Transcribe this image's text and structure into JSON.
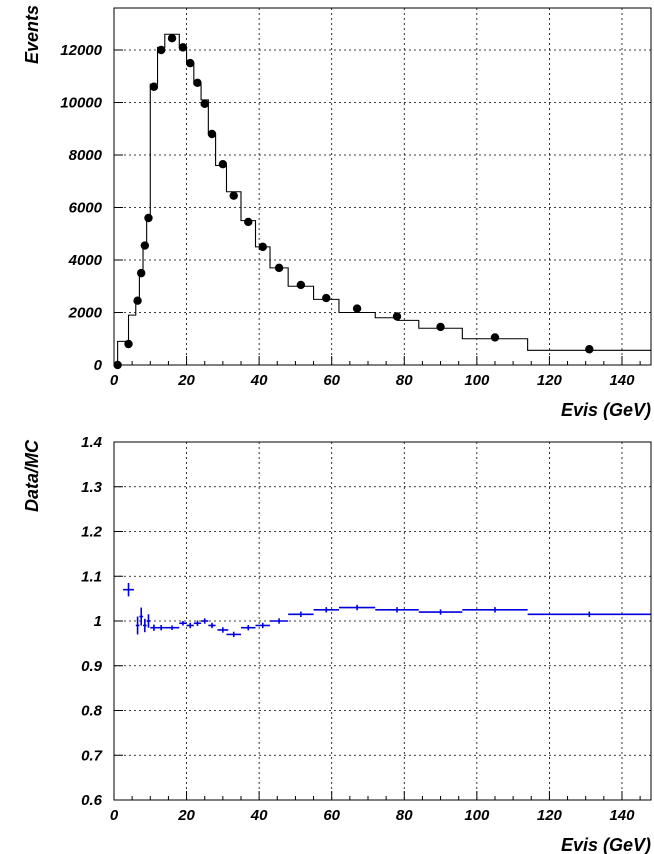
{
  "chart_data": [
    {
      "type": "line",
      "xlabel": "Evis (GeV)",
      "ylabel": "Events",
      "xlim": [
        0,
        148
      ],
      "ylim": [
        0,
        13600
      ],
      "x_ticks": [
        "0",
        "20",
        "40",
        "60",
        "80",
        "100",
        "120",
        "140"
      ],
      "y_ticks": [
        "0",
        "2000",
        "4000",
        "6000",
        "8000",
        "10000",
        "12000"
      ],
      "grid": true,
      "series": [
        {
          "style": "step-histogram",
          "color": "#000000",
          "bins": [
            [
              1,
              4,
              900
            ],
            [
              4,
              6,
              1900
            ],
            [
              6,
              7,
              2500
            ],
            [
              7,
              8,
              3600
            ],
            [
              8,
              9,
              4600
            ],
            [
              9,
              10,
              5600
            ],
            [
              10,
              12,
              10700
            ],
            [
              12,
              14,
              12100
            ],
            [
              14,
              18,
              12600
            ],
            [
              18,
              20,
              12100
            ],
            [
              20,
              22,
              11500
            ],
            [
              22,
              24,
              10700
            ],
            [
              24,
              26,
              10100
            ],
            [
              26,
              28,
              8800
            ],
            [
              28,
              31,
              7600
            ],
            [
              31,
              35,
              6600
            ],
            [
              35,
              39,
              5500
            ],
            [
              39,
              43,
              4500
            ],
            [
              43,
              48,
              3700
            ],
            [
              48,
              55,
              3000
            ],
            [
              55,
              62,
              2500
            ],
            [
              62,
              72,
              2000
            ],
            [
              72,
              78,
              1800
            ],
            [
              78,
              84,
              1700
            ],
            [
              84,
              96,
              1400
            ],
            [
              96,
              114,
              1000
            ],
            [
              114,
              148,
              560
            ]
          ]
        },
        {
          "style": "points",
          "color": "#000000",
          "x": [
            1,
            4,
            6.5,
            7.5,
            8.5,
            9.5,
            11,
            13,
            16,
            19,
            21,
            23,
            25,
            27,
            30,
            33,
            37,
            41,
            45.5,
            51.5,
            58.5,
            67,
            78,
            90,
            105,
            131
          ],
          "y": [
            0,
            800,
            2450,
            3500,
            4550,
            5600,
            10600,
            12000,
            12450,
            12100,
            11500,
            10750,
            9950,
            8800,
            7650,
            6450,
            5450,
            4500,
            3700,
            3050,
            2550,
            2150,
            1850,
            1450,
            1050,
            600
          ]
        }
      ]
    },
    {
      "type": "scatter",
      "xlabel": "Evis (GeV)",
      "ylabel": "Data/MC",
      "xlim": [
        0,
        148
      ],
      "ylim": [
        0.6,
        1.4
      ],
      "x_ticks": [
        "0",
        "20",
        "40",
        "60",
        "80",
        "100",
        "120",
        "140"
      ],
      "y_ticks": [
        "0.6",
        "0.7",
        "0.8",
        "0.9",
        "1",
        "1.1",
        "1.2",
        "1.3",
        "1.4"
      ],
      "grid": true,
      "series": [
        {
          "style": "errorbars",
          "color": "#0000dd",
          "x": [
            4,
            6.5,
            7.5,
            8.5,
            9.5,
            11,
            13,
            16,
            19,
            21,
            23,
            25,
            27,
            30,
            33,
            37,
            41,
            45.5,
            51.5,
            58.5,
            67,
            78,
            90,
            105,
            131
          ],
          "xerr": [
            1.5,
            0.5,
            0.5,
            0.5,
            0.5,
            1,
            1,
            2,
            1,
            1,
            1,
            1,
            1,
            1.5,
            2,
            2,
            2,
            2.5,
            3.5,
            3.5,
            5,
            6,
            6,
            9,
            17
          ],
          "y": [
            1.07,
            0.99,
            1.01,
            0.99,
            1.0,
            0.985,
            0.985,
            0.985,
            0.995,
            0.99,
            0.995,
            1.0,
            0.99,
            0.98,
            0.97,
            0.985,
            0.99,
            1.0,
            1.015,
            1.025,
            1.03,
            1.025,
            1.02,
            1.025,
            1.015
          ],
          "yerr": [
            0.015,
            0.02,
            0.02,
            0.015,
            0.015,
            0.007,
            0.006,
            0.005,
            0.005,
            0.006,
            0.006,
            0.006,
            0.006,
            0.006,
            0.006,
            0.006,
            0.006,
            0.006,
            0.006,
            0.006,
            0.006,
            0.006,
            0.006,
            0.006,
            0.006
          ]
        }
      ]
    }
  ]
}
